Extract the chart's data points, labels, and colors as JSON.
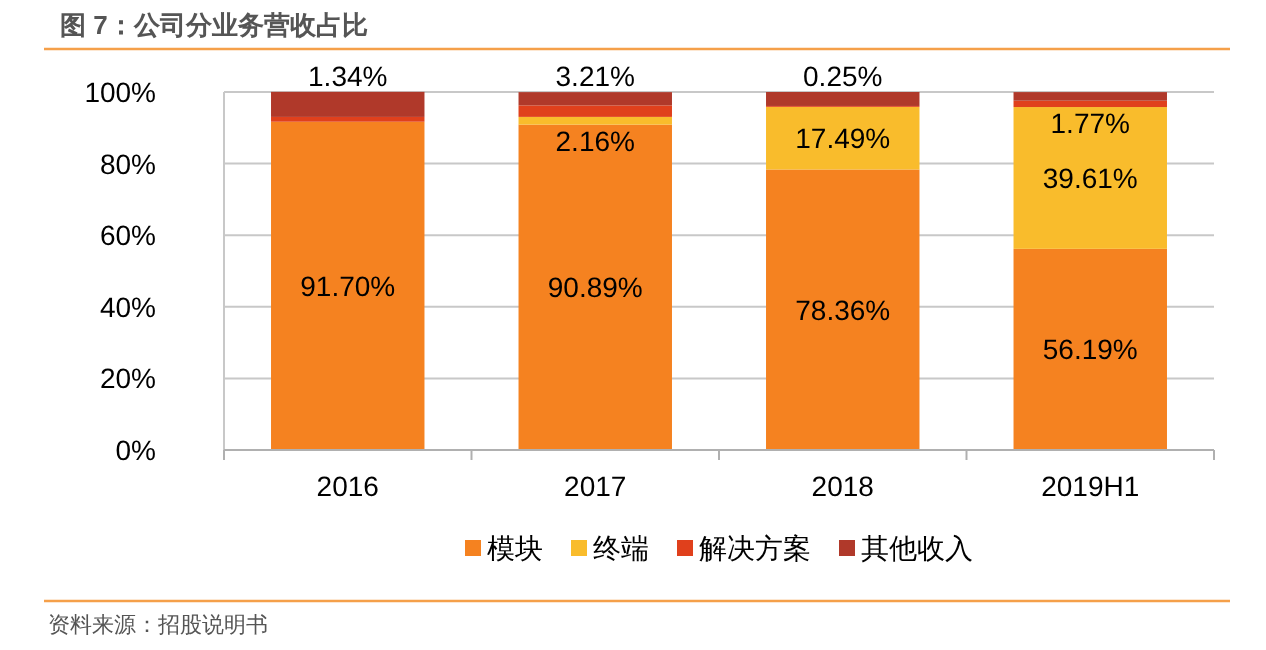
{
  "chart_data": {
    "type": "bar",
    "stacked": true,
    "title": "图 7：公司分业务营收占比",
    "categories": [
      "2016",
      "2017",
      "2018",
      "2019H1"
    ],
    "ylim": [
      0,
      100
    ],
    "yticks": [
      {
        "value": 0,
        "label": "0%"
      },
      {
        "value": 20,
        "label": "20%"
      },
      {
        "value": 40,
        "label": "40%"
      },
      {
        "value": 60,
        "label": "60%"
      },
      {
        "value": 80,
        "label": "80%"
      },
      {
        "value": 100,
        "label": "100%"
      }
    ],
    "grid": "y",
    "legend": "bottom",
    "annotations": [
      "资料来源：招股说明书"
    ],
    "series": [
      {
        "name": "模块",
        "color": "#f58220",
        "values": [
          91.7,
          90.89,
          78.36,
          56.19
        ],
        "value_labels": [
          "91.70%",
          "90.89%",
          "78.36%",
          "56.19%"
        ]
      },
      {
        "name": "终端",
        "color": "#f9bc2c",
        "values": [
          0,
          2.16,
          17.49,
          39.61
        ],
        "value_labels": [
          null,
          "2.16%",
          "17.49%",
          "39.61%"
        ]
      },
      {
        "name": "解决方案",
        "color": "#e0401c",
        "values": [
          1.34,
          3.21,
          0.25,
          1.77
        ],
        "value_labels": [
          "1.34%",
          "3.21%",
          "0.25%",
          "1.77%"
        ]
      },
      {
        "name": "其他收入",
        "color": "#b0392a",
        "values": [
          7.0,
          3.7,
          3.9,
          2.4
        ]
      }
    ]
  }
}
